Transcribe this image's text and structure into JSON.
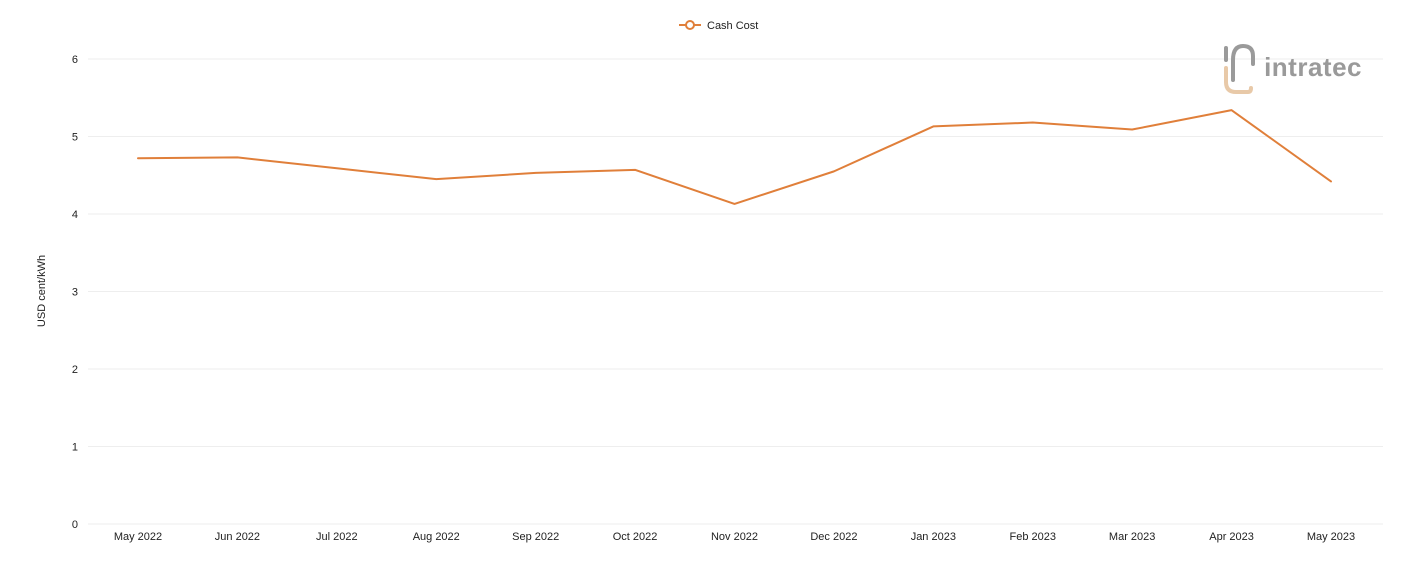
{
  "chart_data": {
    "type": "line",
    "title": "",
    "xlabel": "",
    "ylabel": "USD cent/kWh",
    "ylim": [
      0,
      6
    ],
    "yticks": [
      "0",
      "1",
      "2",
      "3",
      "4",
      "5",
      "6"
    ],
    "grid": true,
    "legend_position": "top-center",
    "categories": [
      "May 2022",
      "Jun 2022",
      "Jul 2022",
      "Aug 2022",
      "Sep 2022",
      "Oct 2022",
      "Nov 2022",
      "Dec 2022",
      "Jan 2023",
      "Feb 2023",
      "Mar 2023",
      "Apr 2023",
      "May 2023"
    ],
    "series": [
      {
        "name": "Cash Cost",
        "color": "#e07f3a",
        "values": [
          4.72,
          4.73,
          4.59,
          4.45,
          4.53,
          4.57,
          4.13,
          4.55,
          5.13,
          5.18,
          5.09,
          5.34,
          4.42
        ]
      }
    ]
  },
  "logo": {
    "text": "intratec",
    "color": "#9a9a9a",
    "accent": "#e8c9a8"
  }
}
